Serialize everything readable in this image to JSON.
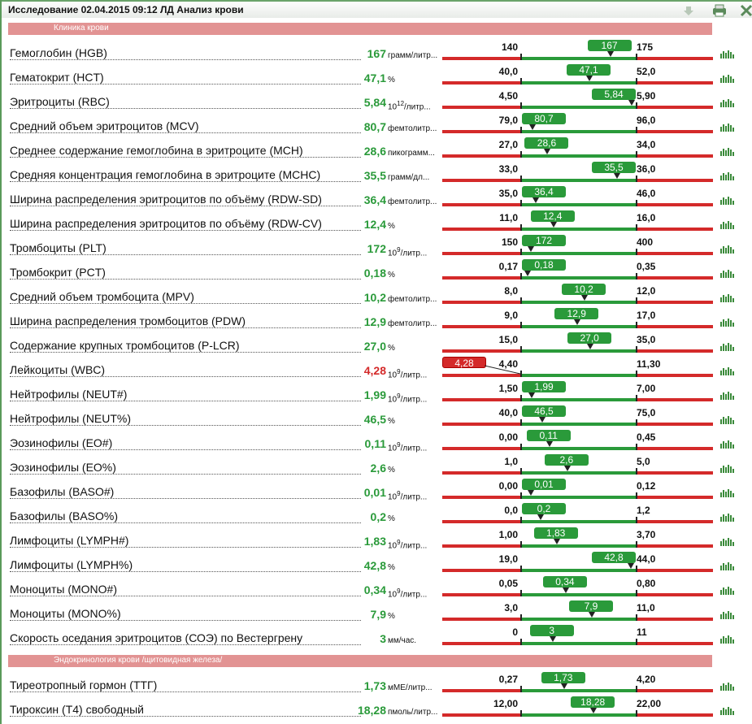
{
  "header": {
    "title": "Исследование 02.04.2015 09:12 ЛД Анализ крови"
  },
  "sections": [
    {
      "title": "Клиника крови",
      "rows": [
        {
          "name": "Гемоглобин (HGB)",
          "value": "167",
          "unit": "грамм/литр...",
          "low": "140",
          "high": "175"
        },
        {
          "name": "Гематокрит (HCT)",
          "value": "47,1",
          "unit": "%",
          "low": "40,0",
          "high": "52,0"
        },
        {
          "name": "Эритроциты (RBC)",
          "value": "5,84",
          "unit_base": "10",
          "unit_exp": "12",
          "unit": "/литр...",
          "low": "4,50",
          "high": "5,90"
        },
        {
          "name": "Средний объем эритроцитов (MCV)",
          "value": "80,7",
          "unit": "фемтолитр...",
          "low": "79,0",
          "high": "96,0"
        },
        {
          "name": "Среднее содержание гемоглобина в эритроците (MCH)",
          "value": "28,6",
          "unit": "пикограмм...",
          "low": "27,0",
          "high": "34,0"
        },
        {
          "name": "Средняя концентрация гемоглобина в эритроците (MCHC)",
          "value": "35,5",
          "unit": "грамм/дл...",
          "low": "33,0",
          "high": "36,0"
        },
        {
          "name": "Ширина распределения эритроцитов по объёму (RDW-SD)",
          "value": "36,4",
          "unit": "фемтолитр...",
          "low": "35,0",
          "high": "46,0"
        },
        {
          "name": "Ширина распределения эритроцитов по объёму (RDW-CV)",
          "value": "12,4",
          "unit": "%",
          "low": "11,0",
          "high": "16,0"
        },
        {
          "name": "Тромбоциты (PLT)",
          "value": "172",
          "unit_base": "10",
          "unit_exp": "9",
          "unit": "/литр...",
          "low": "150",
          "high": "400"
        },
        {
          "name": "Тромбокрит (PCT)",
          "value": "0,18",
          "unit": "%",
          "low": "0,17",
          "high": "0,35"
        },
        {
          "name": "Средний объем тромбоцита (MPV)",
          "value": "10,2",
          "unit": "фемтолитр...",
          "low": "8,0",
          "high": "12,0"
        },
        {
          "name": "Ширина распределения тромбоцитов (PDW)",
          "value": "12,9",
          "unit": "фемтолитр...",
          "low": "9,0",
          "high": "17,0"
        },
        {
          "name": "Содержание крупных тромбоцитов (P-LCR)",
          "value": "27,0",
          "unit": "%",
          "low": "15,0",
          "high": "35,0"
        },
        {
          "name": "Лейкоциты (WBC)",
          "value": "4,28",
          "unit_base": "10",
          "unit_exp": "9",
          "unit": "/литр...",
          "low": "4,40",
          "high": "11,30"
        },
        {
          "name": "Нейтрофилы (NEUT#)",
          "value": "1,99",
          "unit_base": "10",
          "unit_exp": "9",
          "unit": "/литр...",
          "low": "1,50",
          "high": "7,00"
        },
        {
          "name": "Нейтрофилы (NEUT%)",
          "value": "46,5",
          "unit": "%",
          "low": "40,0",
          "high": "75,0"
        },
        {
          "name": "Эозинофилы (EO#)",
          "value": "0,11",
          "unit_base": "10",
          "unit_exp": "9",
          "unit": "/литр...",
          "low": "0,00",
          "high": "0,45"
        },
        {
          "name": "Эозинофилы (EO%)",
          "value": "2,6",
          "unit": "%",
          "low": "1,0",
          "high": "5,0"
        },
        {
          "name": "Базофилы (BASO#)",
          "value": "0,01",
          "unit_base": "10",
          "unit_exp": "9",
          "unit": "/литр...",
          "low": "0,00",
          "high": "0,12"
        },
        {
          "name": "Базофилы (BASO%)",
          "value": "0,2",
          "unit": "%",
          "low": "0,0",
          "high": "1,2"
        },
        {
          "name": "Лимфоциты (LYMPH#)",
          "value": "1,83",
          "unit_base": "10",
          "unit_exp": "9",
          "unit": "/литр...",
          "low": "1,00",
          "high": "3,70"
        },
        {
          "name": "Лимфоциты (LYMPH%)",
          "value": "42,8",
          "unit": "%",
          "low": "19,0",
          "high": "44,0"
        },
        {
          "name": "Моноциты (MONO#)",
          "value": "0,34",
          "unit_base": "10",
          "unit_exp": "9",
          "unit": "/литр...",
          "low": "0,05",
          "high": "0,80"
        },
        {
          "name": "Моноциты (MONO%)",
          "value": "7,9",
          "unit": "%",
          "low": "3,0",
          "high": "11,0"
        },
        {
          "name": "Скорость оседания эритроцитов (СОЭ) по Вестергрену",
          "value": "3",
          "unit": "мм/час.",
          "low": "0",
          "high": "11"
        }
      ]
    },
    {
      "title": "Эндокринология крови /щитовидная железа/",
      "rows": [
        {
          "name": "Тиреотропный гормон (ТТГ)",
          "value": "1,73",
          "unit": "мМЕ/литр...",
          "low": "0,27",
          "high": "4,20"
        },
        {
          "name": "Тироксин (T4) свободный",
          "value": "18,28",
          "unit": "пмоль/литр...",
          "low": "12,00",
          "high": "22,00"
        }
      ]
    }
  ]
}
